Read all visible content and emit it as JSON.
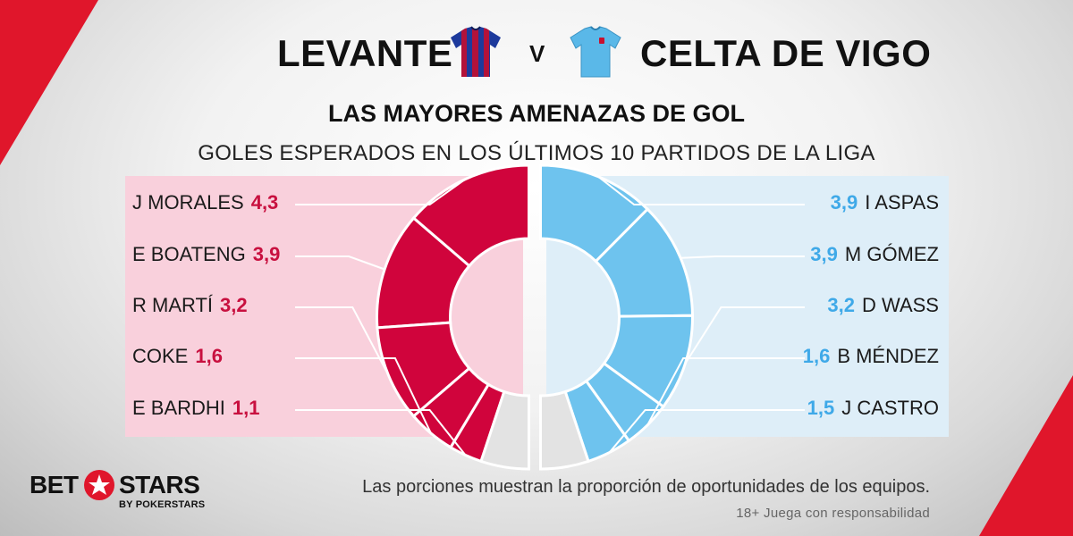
{
  "header": {
    "home_team": "LEVANTE",
    "versus": "V",
    "away_team": "CELTA DE VIGO",
    "home_kit_icon": "levante-jersey-icon",
    "away_kit_icon": "celta-jersey-icon"
  },
  "title": "LAS MAYORES AMENAZAS DE GOL",
  "subtitle": "GOLES ESPERADOS EN LOS ÚLTIMOS 10 PARTIDOS DE LA LIGA",
  "colors": {
    "home": "#d0043c",
    "away": "#6ec3ee",
    "other": "#e3e3e3",
    "home_panel": "#f9d0dc",
    "away_panel": "#deeef8",
    "brand_red": "#e0162b"
  },
  "chart_data": {
    "type": "pie",
    "home": {
      "team": "LEVANTE",
      "players": [
        {
          "name": "J MORALES",
          "value": "4,3",
          "xg": 4.3
        },
        {
          "name": "E BOATENG",
          "value": "3,9",
          "xg": 3.9
        },
        {
          "name": "R MARTÍ",
          "value": "3,2",
          "xg": 3.2
        },
        {
          "name": "COKE",
          "value": "1,6",
          "xg": 1.6
        },
        {
          "name": "E BARDHI",
          "value": "1,1",
          "xg": 1.1
        }
      ]
    },
    "away": {
      "team": "CELTA DE VIGO",
      "players": [
        {
          "name": "I ASPAS",
          "value": "3,9",
          "xg": 3.9
        },
        {
          "name": "M GÓMEZ",
          "value": "3,9",
          "xg": 3.9
        },
        {
          "name": "D WASS",
          "value": "3,2",
          "xg": 3.2
        },
        {
          "name": "B MÉNDEZ",
          "value": "1,6",
          "xg": 1.6
        },
        {
          "name": "J CASTRO",
          "value": "1,5",
          "xg": 1.5
        }
      ]
    }
  },
  "footer": {
    "logo_bet": "BET",
    "logo_stars": "STARS",
    "logo_sub": "BY POKERSTARS",
    "logo_icon": "star-icon",
    "note": "Las porciones muestran la proporción de oportunidades de los equipos.",
    "disclaimer": "18+ Juega con responsabilidad"
  }
}
